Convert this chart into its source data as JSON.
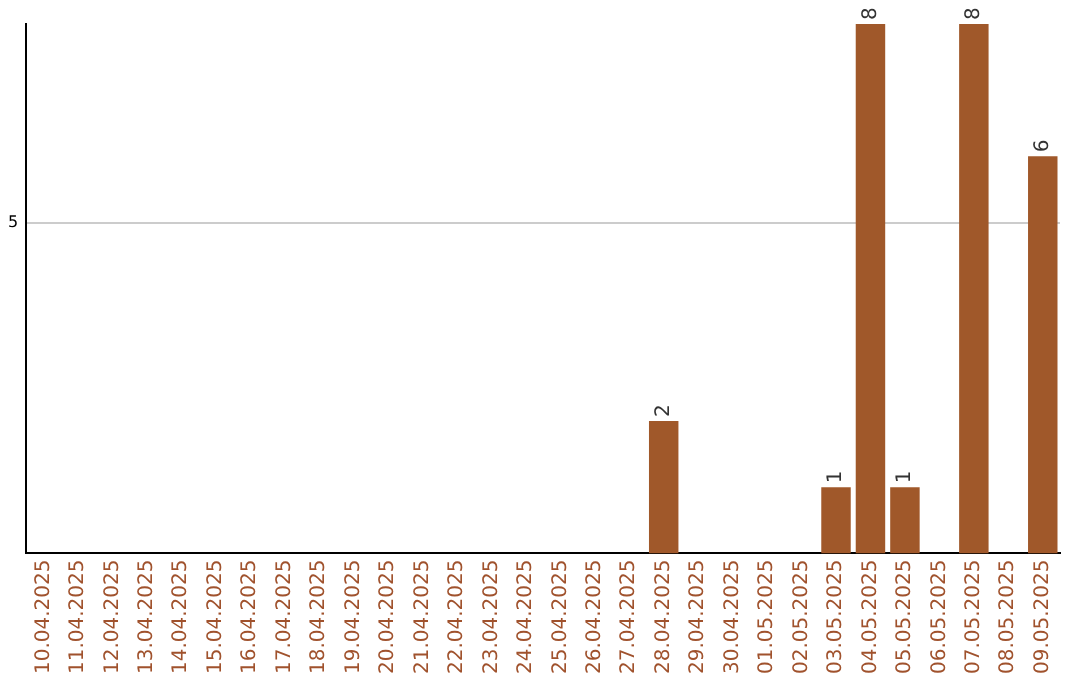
{
  "chart_data": {
    "type": "bar",
    "categories": [
      "10.04.2025",
      "11.04.2025",
      "12.04.2025",
      "13.04.2025",
      "14.04.2025",
      "15.04.2025",
      "16.04.2025",
      "17.04.2025",
      "18.04.2025",
      "19.04.2025",
      "20.04.2025",
      "21.04.2025",
      "22.04.2025",
      "23.04.2025",
      "24.04.2025",
      "25.04.2025",
      "26.04.2025",
      "27.04.2025",
      "28.04.2025",
      "29.04.2025",
      "30.04.2025",
      "01.05.2025",
      "02.05.2025",
      "03.05.2025",
      "04.05.2025",
      "05.05.2025",
      "06.05.2025",
      "07.05.2025",
      "08.05.2025",
      "09.05.2025"
    ],
    "values": [
      null,
      null,
      null,
      null,
      null,
      null,
      null,
      null,
      null,
      null,
      null,
      null,
      null,
      null,
      null,
      null,
      null,
      null,
      2,
      null,
      null,
      null,
      null,
      1,
      8,
      1,
      null,
      8,
      null,
      6
    ],
    "color": "#a0582a",
    "ylim": [
      0,
      8
    ],
    "yticks": [
      5
    ],
    "grid": "y",
    "data_labels": true
  }
}
